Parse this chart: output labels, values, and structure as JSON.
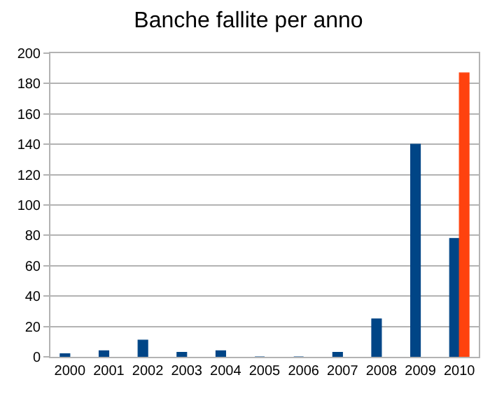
{
  "chart_data": {
    "type": "bar",
    "title": "Banche fallite per anno",
    "categories": [
      "2000",
      "2001",
      "2002",
      "2003",
      "2004",
      "2005",
      "2006",
      "2007",
      "2008",
      "2009",
      "2010"
    ],
    "series": [
      {
        "color": "#004586",
        "values": [
          2,
          4,
          11,
          3,
          4,
          0,
          0,
          3,
          25,
          140,
          78
        ]
      },
      {
        "color": "#ff420e",
        "values": [
          null,
          null,
          null,
          null,
          null,
          null,
          null,
          null,
          null,
          null,
          187
        ]
      }
    ],
    "ylim": [
      0,
      200
    ],
    "yticks": [
      0,
      20,
      40,
      60,
      80,
      100,
      120,
      140,
      160,
      180,
      200
    ],
    "grid": "y"
  }
}
